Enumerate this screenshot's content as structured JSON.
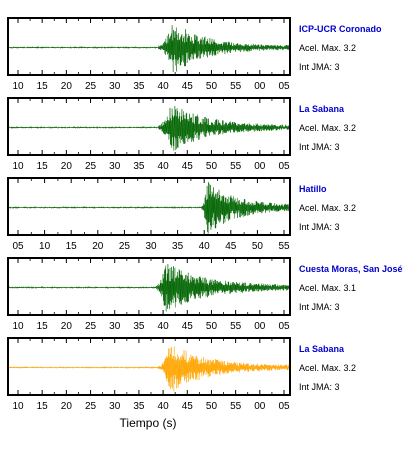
{
  "chart_data": {
    "type": "line",
    "title": "",
    "xlabel": "Tiempo (s)",
    "panels": [
      {
        "station": "ICP-UCR Coronado",
        "accel_label": "Acel. Max. 3.2",
        "jma_label": "Int JMA: 3",
        "color": "#006400",
        "x_ticks": [
          "10",
          "15",
          "20",
          "25",
          "30",
          "35",
          "40",
          "45",
          "50",
          "55",
          "00",
          "05"
        ],
        "onset_tick_index": 5.8,
        "peak_tick_index": 6.4,
        "peak_amplitude": 1.0,
        "coda_length_ticks": 4.0
      },
      {
        "station": "La Sabana",
        "accel_label": "Acel. Max. 3.2",
        "jma_label": "Int JMA: 3",
        "color": "#006400",
        "x_ticks": [
          "10",
          "15",
          "20",
          "25",
          "30",
          "35",
          "40",
          "45",
          "50",
          "55",
          "00",
          "05"
        ],
        "onset_tick_index": 5.8,
        "peak_tick_index": 6.3,
        "peak_amplitude": 0.95,
        "coda_length_ticks": 4.5
      },
      {
        "station": "Hatillo",
        "accel_label": "Acel. Max. 3.2",
        "jma_label": "Int JMA: 3",
        "color": "#006400",
        "x_ticks": [
          "05",
          "10",
          "15",
          "20",
          "25",
          "30",
          "35",
          "40",
          "45",
          "50",
          "55"
        ],
        "onset_tick_index": 6.9,
        "peak_tick_index": 7.1,
        "peak_amplitude": 1.0,
        "coda_length_ticks": 3.5
      },
      {
        "station": "Cuesta Moras, San José",
        "accel_label": "Acel. Max. 3.1",
        "jma_label": "Int JMA: 3",
        "color": "#006400",
        "x_ticks": [
          "10",
          "15",
          "20",
          "25",
          "30",
          "35",
          "40",
          "45",
          "50",
          "55",
          "00",
          "05"
        ],
        "onset_tick_index": 5.7,
        "peak_tick_index": 6.1,
        "peak_amplitude": 0.95,
        "coda_length_ticks": 5.0
      },
      {
        "station": "La Sabana",
        "accel_label": "Acel. Max. 3.2",
        "jma_label": "Int JMA: 3",
        "color": "#ffa500",
        "x_ticks": [
          "10",
          "15",
          "20",
          "25",
          "30",
          "35",
          "40",
          "45",
          "50",
          "55",
          "00",
          "05"
        ],
        "onset_tick_index": 5.8,
        "peak_tick_index": 6.3,
        "peak_amplitude": 0.95,
        "coda_length_ticks": 4.5
      }
    ]
  }
}
